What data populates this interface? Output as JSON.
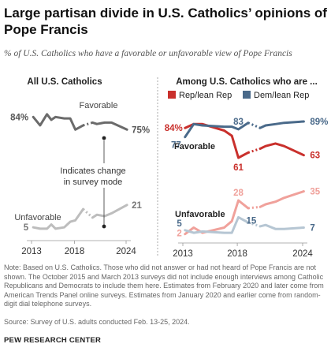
{
  "title": "Large partisan divide in U.S. Catholics’ opinions of Pope Francis",
  "subtitle": "% of U.S. Catholics who have a favorable or unfavorable view of Pope Francis",
  "note": "Note: Based on U.S. Catholics. Those who did not answer or had not heard of Pope Francis are not shown. The October 2015 and March 2013 surveys did not include enough interviews among Catholic Republicans and Democrats to include them here. Estimates from February 2020 and later come from American Trends Panel online surveys. Estimates from January 2020 and earlier come from random-digit dial telephone surveys.",
  "source": "Source: Survey of U.S. adults conducted Feb. 13-25, 2024.",
  "footer": "PEW RESEARCH CENTER",
  "colors": {
    "favorable_all": "#6b6b6b",
    "unfavorable_all": "#bdbdbd",
    "rep": "#c9302c",
    "dem": "#4a6a8a",
    "rep_light": "#f0a19b",
    "dem_light": "#b6c6d3"
  },
  "chart_data": [
    {
      "type": "line",
      "panel_title": "All U.S. Catholics",
      "x_ticks": [
        "2013",
        "2018",
        "2024"
      ],
      "series": [
        {
          "name": "Favorable",
          "x": [
            2013.2,
            2014.0,
            2014.8,
            2015.3,
            2015.8,
            2016.8,
            2017.5,
            2018.1,
            2019.0,
            2020.1,
            2020.6,
            2021.5,
            2022.3,
            2024.1
          ],
          "values": [
            84,
            78,
            86,
            82,
            84,
            83,
            83,
            75,
            78,
            80,
            79,
            80,
            80,
            75
          ],
          "start_label": "84%",
          "end_label": "75%"
        },
        {
          "name": "Unfavorable",
          "x": [
            2013.2,
            2014.0,
            2014.8,
            2015.3,
            2015.8,
            2016.8,
            2017.5,
            2018.1,
            2019.0,
            2020.1,
            2020.6,
            2021.5,
            2022.3,
            2024.1
          ],
          "values": [
            5,
            4,
            4,
            7,
            4,
            5,
            9,
            10,
            18,
            12,
            14,
            13,
            15,
            21
          ],
          "start_label": "5",
          "end_label": "21"
        }
      ],
      "annotation": "Indicates change in survey mode"
    },
    {
      "type": "line",
      "panel_title": "Among U.S. Catholics who are ...",
      "x_ticks": [
        "2013",
        "2018",
        "2024"
      ],
      "legend": [
        "Rep/lean Rep",
        "Dem/lean Rep"
      ],
      "favorable_label": "Favorable",
      "unfavorable_label": "Unfavorable",
      "series": [
        {
          "name": "Rep/lean Rep",
          "group": "Favorable",
          "x": [
            2013.2,
            2014.0,
            2014.8,
            2016.8,
            2017.5,
            2018.1,
            2019.0,
            2020.1,
            2020.6,
            2021.5,
            2022.3,
            2024.1
          ],
          "values": [
            84,
            87,
            87,
            82,
            78,
            61,
            65,
            68,
            70,
            72,
            70,
            63
          ],
          "start_label": "84%",
          "min_label": "61",
          "end_label": "63"
        },
        {
          "name": "Dem/lean Rep",
          "group": "Favorable",
          "x": [
            2013.2,
            2014.0,
            2014.8,
            2016.8,
            2017.5,
            2018.1,
            2019.0,
            2020.1,
            2020.6,
            2021.5,
            2022.3,
            2024.1
          ],
          "values": [
            77,
            87,
            86,
            85,
            85,
            83,
            88,
            84,
            86,
            87,
            88,
            89
          ],
          "start_label": "77",
          "mid_label": "83",
          "end_label": "89%"
        },
        {
          "name": "Rep/lean Rep",
          "group": "Unfavorable",
          "x": [
            2013.2,
            2014.0,
            2014.8,
            2016.8,
            2017.5,
            2018.1,
            2019.0,
            2020.1,
            2020.6,
            2021.5,
            2022.3,
            2024.1
          ],
          "values": [
            2,
            7,
            3,
            7,
            12,
            28,
            22,
            23,
            25,
            27,
            30,
            35
          ],
          "start_label": "2",
          "max_label": "28",
          "end_label": "35"
        },
        {
          "name": "Dem/lean Rep",
          "group": "Unfavorable",
          "x": [
            2013.2,
            2014.0,
            2014.8,
            2016.8,
            2017.5,
            2018.1,
            2019.0,
            2020.1,
            2020.6,
            2021.5,
            2022.3,
            2024.1
          ],
          "values": [
            5,
            3,
            4,
            3,
            3,
            15,
            11,
            8,
            9,
            6,
            6,
            7
          ],
          "start_label": "5",
          "mid_label": "15",
          "end_label": "7"
        }
      ]
    }
  ]
}
